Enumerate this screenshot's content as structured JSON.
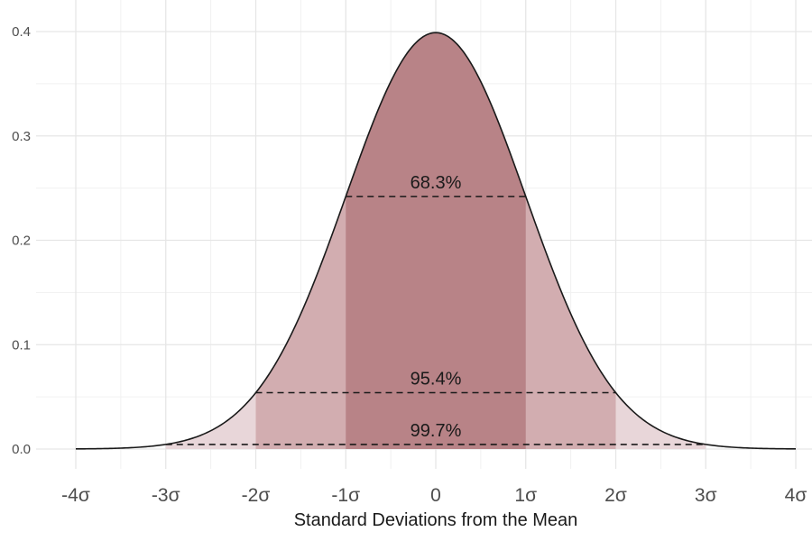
{
  "chart_data": {
    "type": "area",
    "title": "",
    "xlabel": "Standard Deviations from the Mean",
    "ylabel": "",
    "xlim": [
      -4,
      4
    ],
    "ylim": [
      0,
      0.4
    ],
    "x_ticks": [
      -4,
      -3,
      -2,
      -1,
      0,
      1,
      2,
      3,
      4
    ],
    "x_tick_labels": [
      "-4σ",
      "-3σ",
      "-2σ",
      "-1σ",
      "0",
      "1σ",
      "2σ",
      "3σ",
      "4σ"
    ],
    "y_ticks": [
      0.0,
      0.1,
      0.2,
      0.3,
      0.4
    ],
    "y_tick_labels": [
      "0.0",
      "0.1",
      "0.2",
      "0.3",
      "0.4"
    ],
    "grid": true,
    "distribution": {
      "name": "normal",
      "mean": 0,
      "sd": 1
    },
    "bands": [
      {
        "range": [
          -3,
          3
        ],
        "color": "#e8d6d9"
      },
      {
        "range": [
          -2,
          2
        ],
        "color": "#d2adb0"
      },
      {
        "range": [
          -1,
          1
        ],
        "color": "#b88387"
      }
    ],
    "annotations": [
      {
        "label": "68.3%",
        "x_from": -1,
        "x_to": 1,
        "y": 0.242
      },
      {
        "label": "95.4%",
        "x_from": -2,
        "x_to": 2,
        "y": 0.054
      },
      {
        "label": "99.7%",
        "x_from": -3,
        "x_to": 3,
        "y": 0.0044
      }
    ],
    "curve_color": "#1a1a1a"
  }
}
